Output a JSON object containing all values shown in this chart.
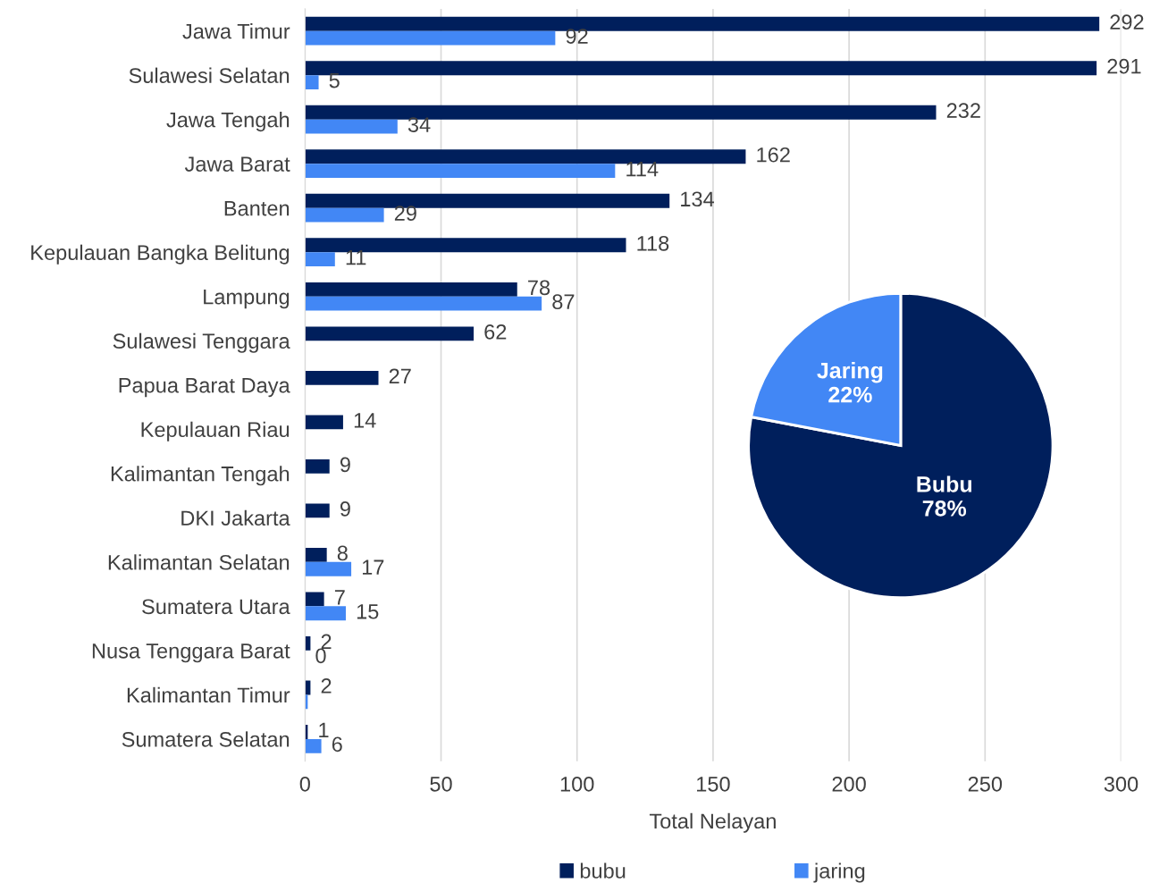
{
  "chart_data": [
    {
      "type": "bar",
      "orientation": "horizontal",
      "xlabel": "Total Nelayan",
      "xlim": [
        0,
        300
      ],
      "xticks": [
        0,
        50,
        100,
        150,
        200,
        250,
        300
      ],
      "grid": "x",
      "legend": "bottom",
      "data_labels": true,
      "categories": [
        "Jawa Timur",
        "Sulawesi Selatan",
        "Jawa Tengah",
        "Jawa Barat",
        "Banten",
        "Kepulauan Bangka Belitung",
        "Lampung",
        "Sulawesi Tenggara",
        "Papua Barat Daya",
        "Kepulauan Riau",
        "Kalimantan Tengah",
        "DKI Jakarta",
        "Kalimantan Selatan",
        "Sumatera Utara",
        "Nusa Tenggara Barat",
        "Kalimantan Timur",
        "Sumatera Selatan"
      ],
      "series": [
        {
          "name": "bubu",
          "color": "#001f5c",
          "values": [
            292,
            291,
            232,
            162,
            134,
            118,
            78,
            62,
            27,
            14,
            9,
            9,
            8,
            7,
            2,
            2,
            1
          ]
        },
        {
          "name": "jaring",
          "color": "#4287f5",
          "values": [
            92,
            5,
            34,
            114,
            29,
            11,
            87,
            null,
            null,
            null,
            null,
            null,
            17,
            15,
            0,
            1,
            6
          ],
          "value_labels": [
            "92",
            "5",
            "34",
            "114",
            "29",
            "11",
            "87",
            null,
            null,
            null,
            null,
            null,
            "17",
            "15",
            "0",
            null,
            "6"
          ]
        }
      ]
    },
    {
      "type": "pie",
      "categories": [
        "Bubu",
        "Jaring"
      ],
      "values": [
        78,
        22
      ],
      "colors": [
        "#001f5c",
        "#4287f5"
      ],
      "value_labels": [
        "78%",
        "22%"
      ]
    }
  ]
}
